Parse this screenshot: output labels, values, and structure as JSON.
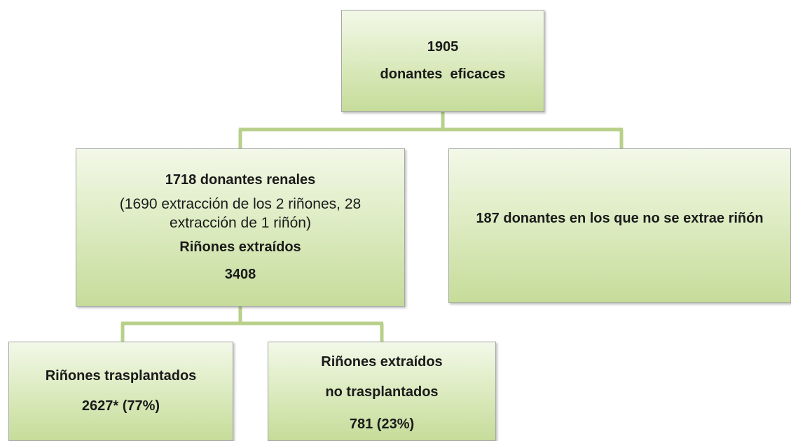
{
  "nodes": [
    {
      "lines": [
        "1905",
        "donantes  eficaces"
      ]
    },
    {
      "lines": [
        "1718 donantes renales",
        "(1690 extracción de los 2 riñones, 28 extracción de 1 riñón)",
        "Riñones extraídos",
        "3408"
      ]
    },
    {
      "lines": [
        "187 donantes en los que no se extrae riñón"
      ]
    },
    {
      "lines": [
        "Riñones trasplantados",
        "2627* (77%)"
      ]
    },
    {
      "lines": [
        "Riñones extraídos",
        "no trasplantados",
        "781 (23%)"
      ]
    }
  ]
}
